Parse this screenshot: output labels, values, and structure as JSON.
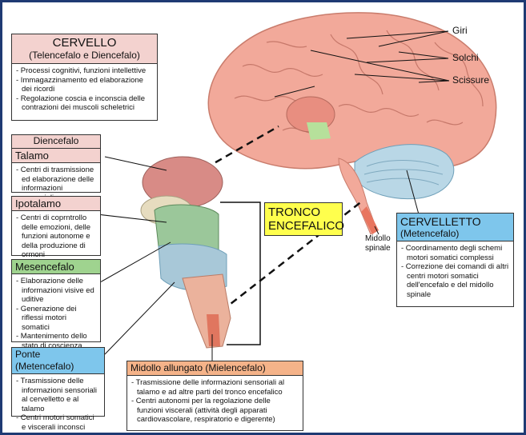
{
  "cervello": {
    "title": "CERVELLO",
    "subtitle": "(Telencefalo e Diencefalo)",
    "items": [
      "- Processi cognitivi, funzioni intellettive",
      "- Immagazzinamento ed elaborazione dei ricordi",
      "- Regolazione coscia e inconscia delle contrazioni dei muscoli scheletrici"
    ]
  },
  "diencefalo": {
    "title": "Diencefalo"
  },
  "talamo": {
    "title": "Talamo",
    "items": [
      "- Centri di trasmissione ed elaborazione delle informazioni sensoriali"
    ]
  },
  "ipotalamo": {
    "title": "Ipotalamo",
    "items": [
      "- Centri di coprntrollo delle emozioni, delle funzioni autonome e della produzione di ormoni"
    ]
  },
  "mesencefalo": {
    "title": "Mesencefalo",
    "items": [
      "- Elaborazione delle informazioni visive ed uditive",
      "- Generazione dei riflessi motori somatici",
      "- Mantenimento dello stato di coscienza"
    ]
  },
  "ponte": {
    "title": "Ponte (Metencefalo)",
    "items": [
      "- Trasmissione delle informazioni sensoriali al cervelletto e al talamo",
      "- Centri motori somatici e viscerali inconsci"
    ]
  },
  "midollo_allungato": {
    "title": "Midollo allungato (Mielencefalo)",
    "items": [
      "- Trasmissione delle informazioni sensoriali al talamo e ad altre parti del tronco encefalico",
      "- Centri autonomi per la regolazione delle funzioni viscerali (attività degli apparati cardiovascolare, respiratorio e digerente)"
    ]
  },
  "cervelletto": {
    "title": "CERVELLETTO",
    "subtitle": "(Metencefalo)",
    "items": [
      "- Coordinamento degli schemi motori somatici complessi",
      "- Correzione dei comandi di altri centri motori somatici dell'encefalo e del midollo spinale"
    ]
  },
  "tronco": {
    "line1": "TRONCO",
    "line2": "ENCEFALICO"
  },
  "labels": {
    "giri": "Giri",
    "solchi": "Solchi",
    "scissure": "Scissure",
    "midollo_spinale_1": "Midollo",
    "midollo_spinale_2": "spinale"
  },
  "colors": {
    "border": "#1f3a73",
    "pink_header": "#f3d2cf",
    "green_header": "#9fd38f",
    "blue_header": "#7ec6ec",
    "orange_header": "#f5b389",
    "tronco_bg": "#ffff4d"
  }
}
